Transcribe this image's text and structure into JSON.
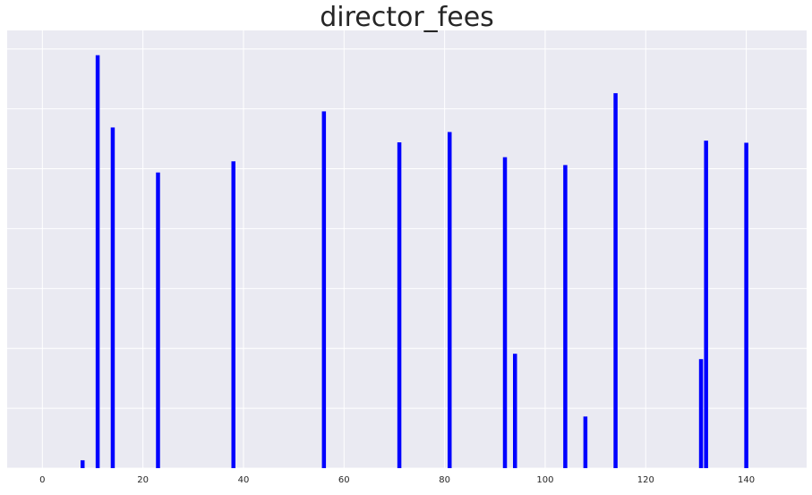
{
  "chart_data": {
    "type": "bar",
    "title": "director_fees",
    "xlabel": "",
    "ylabel": "",
    "x_ticks": [
      0,
      20,
      40,
      60,
      80,
      100,
      120,
      140
    ],
    "y_ticks_visible": false,
    "xlim": [
      -7,
      152
    ],
    "ylim": [
      0,
      1.06
    ],
    "grid": true,
    "bar_color": "#0000ff",
    "plot_background": "#eaeaf2",
    "grid_color": "#ffffff",
    "points": [
      {
        "x": 8,
        "y": 0.019
      },
      {
        "x": 11,
        "y": 1.0
      },
      {
        "x": 14,
        "y": 0.825
      },
      {
        "x": 23,
        "y": 0.716
      },
      {
        "x": 38,
        "y": 0.743
      },
      {
        "x": 56,
        "y": 0.864
      },
      {
        "x": 71,
        "y": 0.789
      },
      {
        "x": 81,
        "y": 0.814
      },
      {
        "x": 92,
        "y": 0.753
      },
      {
        "x": 94,
        "y": 0.277
      },
      {
        "x": 104,
        "y": 0.734
      },
      {
        "x": 108,
        "y": 0.125
      },
      {
        "x": 114,
        "y": 0.908
      },
      {
        "x": 131,
        "y": 0.264
      },
      {
        "x": 132,
        "y": 0.793
      },
      {
        "x": 140,
        "y": 0.788
      }
    ]
  }
}
